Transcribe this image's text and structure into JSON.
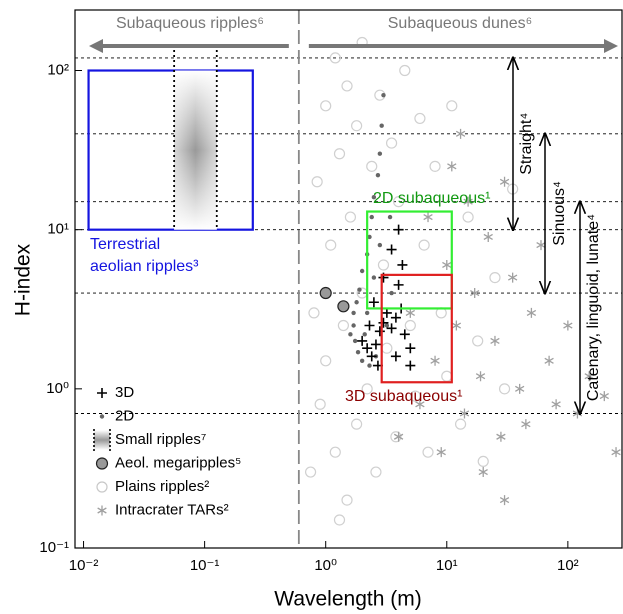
{
  "chart_data": {
    "type": "scatter",
    "xlabel": "Wavelength (m)",
    "ylabel": "H-index",
    "xlog": true,
    "ylog": true,
    "xlim": [
      0.0085,
      280
    ],
    "ylim": [
      0.1,
      240
    ],
    "xticks": [
      {
        "value": 0.01,
        "label": "10⁻²"
      },
      {
        "value": 0.1,
        "label": "10⁻¹"
      },
      {
        "value": 1,
        "label": "10⁰"
      },
      {
        "value": 10,
        "label": "10¹"
      },
      {
        "value": 100,
        "label": "10²"
      }
    ],
    "yticks": [
      {
        "value": 0.1,
        "label": "10⁻¹"
      },
      {
        "value": 1,
        "label": "10⁰"
      },
      {
        "value": 10,
        "label": "10¹"
      },
      {
        "value": 100,
        "label": "10²"
      }
    ],
    "hlines": [
      120,
      40,
      15,
      10,
      4,
      0.7
    ],
    "vline": 0.6,
    "legend": "lower left",
    "series": [
      {
        "name": "Plains ripples²",
        "color": "#d0d0d0",
        "marker": "circle-open",
        "x": [
          0.75,
          0.8,
          0.85,
          0.9,
          1.0,
          1.0,
          1.1,
          1.2,
          1.2,
          1.3,
          1.4,
          1.5,
          1.5,
          1.6,
          1.8,
          1.8,
          2.0,
          2.0,
          2.2,
          2.4,
          2.6,
          2.8,
          3.0,
          3.2,
          3.5,
          3.8,
          4.0,
          4.5,
          5,
          5.5,
          6,
          6.5,
          7,
          8,
          9,
          10,
          11,
          13,
          15,
          18,
          20,
          25,
          30,
          35,
          1.3
        ],
        "values": [
          0.3,
          3,
          20,
          0.8,
          60,
          1.5,
          8,
          0.4,
          120,
          30,
          2.5,
          0.2,
          80,
          12,
          0.6,
          45,
          4,
          150,
          1,
          25,
          0.3,
          70,
          6,
          1.8,
          35,
          0.5,
          15,
          100,
          2.5,
          0.9,
          50,
          8,
          0.4,
          25,
          3,
          1.2,
          60,
          0.6,
          12,
          2,
          0.35,
          5,
          1,
          18,
          0.15
        ]
      },
      {
        "name": "Intracrater TARs²",
        "color": "#a0a0a0",
        "marker": "asterisk",
        "x": [
          4,
          5,
          6,
          7,
          8,
          9,
          10,
          11,
          12,
          14,
          15,
          17,
          19,
          20,
          22,
          25,
          28,
          30,
          35,
          40,
          45,
          50,
          60,
          70,
          80,
          100,
          120,
          150,
          200,
          250,
          30,
          13
        ],
        "values": [
          0.5,
          3,
          0.8,
          12,
          1.5,
          0.4,
          6,
          25,
          2.5,
          0.7,
          15,
          4,
          1.2,
          0.3,
          9,
          2,
          0.5,
          20,
          5,
          1,
          0.6,
          3,
          8,
          1.5,
          0.8,
          2.5,
          0.7,
          1.2,
          0.9,
          0.4,
          0.2,
          40
        ]
      },
      {
        "name": "2D",
        "color": "#666666",
        "marker": "dot",
        "x": [
          3.0,
          2.9,
          2.8,
          2.7,
          2.5,
          2.4,
          2.3,
          2.2,
          2.0,
          1.9,
          1.8,
          1.7,
          1.7,
          1.75,
          1.85,
          2.0,
          2.3,
          2.6,
          2.2,
          2.5,
          2.8,
          3.2,
          3.5,
          1.6,
          2.1,
          3.4
        ],
        "values": [
          70,
          45,
          30,
          22,
          16,
          12,
          9,
          7,
          5.5,
          4.2,
          3.5,
          3,
          2.5,
          2,
          1.7,
          1.5,
          1.4,
          1.6,
          3,
          5,
          8,
          2.5,
          4,
          2.2,
          2.2,
          12
        ]
      },
      {
        "name": "3D",
        "color": "#000000",
        "marker": "plus",
        "x": [
          2.0,
          2.2,
          2.4,
          2.6,
          2.8,
          3.0,
          3.2,
          3.5,
          3.8,
          4.2,
          4.5,
          5,
          3,
          3.5,
          4,
          4.3,
          2.5,
          2.7,
          3.8,
          5,
          4,
          2.3
        ],
        "values": [
          2.0,
          1.8,
          1.6,
          1.9,
          2.3,
          2.6,
          3,
          2.4,
          2.8,
          3.2,
          2.2,
          1.8,
          5,
          7.5,
          10,
          6,
          3.5,
          1.4,
          1.6,
          1.4,
          4.5,
          2.5
        ]
      },
      {
        "name": "Aeol. megaripples⁵",
        "color": "#999999",
        "marker": "circle-filled",
        "x": [
          1.0,
          1.4
        ],
        "values": [
          4,
          3.3
        ]
      }
    ],
    "regions": [
      {
        "label": [
          "Terrestrial",
          "aeolian ripples³"
        ],
        "color": "#1515e0",
        "x": [
          0.011,
          0.25
        ],
        "y": [
          10,
          100
        ]
      },
      {
        "label": [
          "Small ripples⁷"
        ],
        "color": "#555555",
        "style": "gradient",
        "x": [
          0.056,
          0.126
        ],
        "y": [
          10,
          100
        ]
      },
      {
        "label": [
          "2D subaqueous¹"
        ],
        "color": "#33ee33",
        "text_color": "#119911",
        "x": [
          2.2,
          11
        ],
        "y": [
          3.2,
          13
        ]
      },
      {
        "label": [
          "3D subaqueous¹"
        ],
        "color": "#e02020",
        "text_color": "#8b0000",
        "x": [
          2.9,
          11
        ],
        "y": [
          1.1,
          5.2
        ]
      }
    ],
    "top_arrows": [
      "Subaqueous ripples⁶",
      "Subaqueous dunes⁶"
    ],
    "ranges": [
      {
        "label": "Straight⁴",
        "y": [
          120,
          10
        ]
      },
      {
        "label": "Sinuous⁴",
        "y": [
          40,
          4
        ]
      },
      {
        "label": "Catenary, linguoid, lunate⁴",
        "y": [
          15,
          0.7
        ]
      }
    ]
  }
}
